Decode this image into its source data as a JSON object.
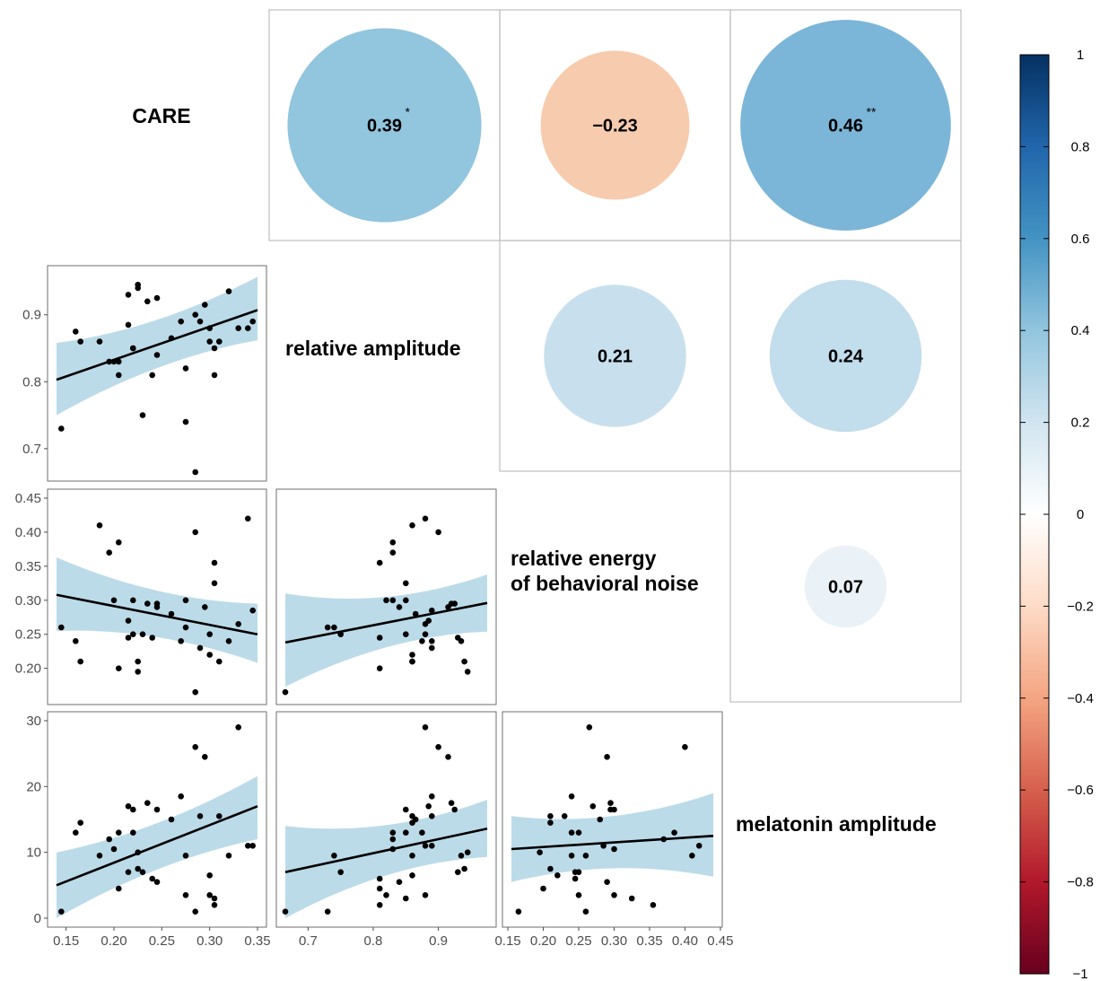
{
  "chart_data": {
    "type": "scatter",
    "variables": [
      "CARE",
      "relative amplitude",
      "relative energy of behavioral noise",
      "melatonin amplitude"
    ],
    "diagonal_labels": [
      [
        "CARE"
      ],
      [
        "relative amplitude"
      ],
      [
        "relative energy",
        "of behavioral noise"
      ],
      [
        "melatonin amplitude"
      ]
    ],
    "correlations": [
      {
        "row": 0,
        "col": 1,
        "r": 0.39,
        "label": "0.39",
        "sig": "*",
        "color": "#92c5de"
      },
      {
        "row": 0,
        "col": 2,
        "r": -0.23,
        "label": "−0.23",
        "sig": "",
        "color": "#f7cbae"
      },
      {
        "row": 0,
        "col": 3,
        "r": 0.46,
        "label": "0.46",
        "sig": "**",
        "color": "#7bb6d8"
      },
      {
        "row": 1,
        "col": 2,
        "r": 0.21,
        "label": "0.21",
        "sig": "",
        "color": "#c8e0ee"
      },
      {
        "row": 1,
        "col": 3,
        "r": 0.24,
        "label": "0.24",
        "sig": "",
        "color": "#c2ddec"
      },
      {
        "row": 2,
        "col": 3,
        "r": 0.07,
        "label": "0.07",
        "sig": "",
        "color": "#eaf2f8"
      }
    ],
    "axes": {
      "CARE_x": {
        "range": [
          0.14,
          0.35
        ],
        "ticks": [
          0.15,
          0.2,
          0.25,
          0.3,
          0.35
        ],
        "labels": [
          "0.15",
          "0.20",
          "0.25",
          "0.30",
          "0.35"
        ]
      },
      "relative_amplitude_x": {
        "range": [
          0.665,
          0.975
        ],
        "ticks": [
          0.7,
          0.8,
          0.9
        ],
        "labels": [
          "0.7",
          "0.8",
          "0.9"
        ]
      },
      "noise_x": {
        "range": [
          0.155,
          0.44
        ],
        "ticks": [
          0.15,
          0.2,
          0.25,
          0.3,
          0.35,
          0.4,
          0.45
        ],
        "labels": [
          "0.15",
          "0.20",
          "0.25",
          "0.30",
          "0.35",
          "0.40",
          "0.45"
        ]
      },
      "relative_amplitude_y": {
        "range": [
          0.665,
          0.96
        ],
        "ticks": [
          0.7,
          0.8,
          0.9
        ],
        "labels": [
          "0.7",
          "0.8",
          "0.9"
        ]
      },
      "noise_y": {
        "range": [
          0.16,
          0.45
        ],
        "ticks": [
          0.2,
          0.25,
          0.3,
          0.35,
          0.4,
          0.45
        ],
        "labels": [
          "0.20",
          "0.25",
          "0.30",
          "0.35",
          "0.40",
          "0.45"
        ]
      },
      "melatonin_y": {
        "range": [
          0,
          30
        ],
        "ticks": [
          0,
          10,
          20,
          30
        ],
        "labels": [
          "0",
          "10",
          "20",
          "30"
        ]
      }
    },
    "observations": {
      "CARE": [
        0.33,
        0.285,
        0.295,
        0.27,
        0.235,
        0.215,
        0.245,
        0.22,
        0.29,
        0.31,
        0.26,
        0.165,
        0.16,
        0.22,
        0.205,
        0.195,
        0.34,
        0.345,
        0.2,
        0.225,
        0.32,
        0.185,
        0.275,
        0.225,
        0.215,
        0.23,
        0.3,
        0.24,
        0.245,
        0.205,
        0.3,
        0.275,
        0.305,
        0.305,
        0.145,
        0.285
      ],
      "relative_amplitude": [
        0.88,
        0.9,
        0.915,
        0.89,
        0.92,
        0.885,
        0.925,
        0.85,
        0.89,
        0.86,
        0.865,
        0.86,
        0.875,
        0.85,
        0.83,
        0.83,
        0.88,
        0.89,
        0.83,
        0.945,
        0.935,
        0.86,
        0.74,
        0.94,
        0.93,
        0.75,
        0.86,
        0.81,
        0.84,
        0.81,
        0.88,
        0.82,
        0.85,
        0.81,
        0.73,
        0.665
      ],
      "noise": [
        0.265,
        0.4,
        0.29,
        0.24,
        0.295,
        0.27,
        0.295,
        0.3,
        0.23,
        0.21,
        0.28,
        0.21,
        0.24,
        0.25,
        0.385,
        0.37,
        0.42,
        0.285,
        0.3,
        0.195,
        0.24,
        0.41,
        0.26,
        0.21,
        0.245,
        0.25,
        0.22,
        0.245,
        0.29,
        0.2,
        0.25,
        0.3,
        0.325,
        0.355,
        0.26,
        0.165
      ],
      "melatonin": [
        29,
        26,
        24.5,
        18.5,
        17.5,
        17,
        16.5,
        16.5,
        15.5,
        15.5,
        15,
        14.5,
        13,
        13,
        13,
        12,
        11,
        11,
        10.5,
        10,
        9.5,
        9.5,
        9.5,
        7.5,
        7,
        7,
        6.5,
        6,
        5.5,
        4.5,
        3.5,
        3.5,
        3,
        2,
        1,
        1
      ]
    },
    "fits": [
      {
        "panel": "relative amplitude vs CARE",
        "x_range": [
          0.14,
          0.35
        ],
        "y_fit": [
          0.803,
          0.907
        ],
        "band_lower": [
          0.75,
          0.862
        ],
        "band_upper": [
          0.858,
          0.957
        ]
      },
      {
        "panel": "relative energy of behavioral noise vs CARE",
        "x_range": [
          0.14,
          0.35
        ],
        "y_fit": [
          0.308,
          0.25
        ],
        "band_lower": [
          0.255,
          0.208
        ],
        "band_upper": [
          0.363,
          0.295
        ]
      },
      {
        "panel": "relative energy of behavioral noise vs relative amplitude",
        "x_range": [
          0.665,
          0.975
        ],
        "y_fit": [
          0.238,
          0.296
        ],
        "band_lower": [
          0.173,
          0.254
        ],
        "band_upper": [
          0.31,
          0.338
        ]
      },
      {
        "panel": "melatonin amplitude vs CARE",
        "x_range": [
          0.14,
          0.35
        ],
        "y_fit": [
          5,
          17
        ],
        "band_lower": [
          0,
          12
        ],
        "band_upper": [
          10,
          21.6
        ]
      },
      {
        "panel": "melatonin amplitude vs relative amplitude",
        "x_range": [
          0.665,
          0.975
        ],
        "y_fit": [
          7,
          13.6
        ],
        "band_lower": [
          0,
          9.3
        ],
        "band_upper": [
          14,
          18
        ]
      },
      {
        "panel": "melatonin amplitude vs relative energy of behavioral noise",
        "x_range": [
          0.155,
          0.44
        ],
        "y_fit": [
          10.5,
          12.5
        ],
        "band_lower": [
          5.5,
          6.3
        ],
        "band_upper": [
          15.5,
          19
        ]
      }
    ],
    "colorbar": {
      "range": [
        -1,
        1
      ],
      "ticks": [
        "1",
        "0.8",
        "0.6",
        "0.4",
        "0.2",
        "0",
        "−0.2",
        "−0.4",
        "−0.6",
        "−0.8",
        "−1"
      ]
    },
    "colors": {
      "band": "#a6cfe1",
      "fit_line": "#000000",
      "point": "#000000",
      "panel_border": "#bfbfbf"
    }
  }
}
